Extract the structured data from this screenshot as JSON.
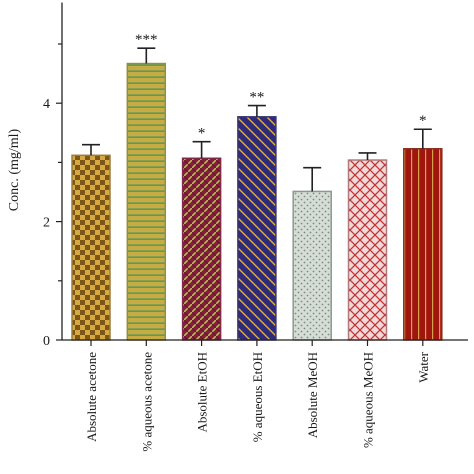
{
  "chart_data": {
    "type": "bar",
    "ylabel": "Conc. (mg/ml)",
    "xlabel": "",
    "ylim": [
      0,
      5.7
    ],
    "yticks": [
      0,
      2,
      4
    ],
    "grid": false,
    "categories": [
      "Absolute acetone",
      "% aqueous acetone",
      "Absolute EtOH",
      "% aqueous EtOH",
      "Absolute MeOH",
      "% aqueous MeOH",
      "Water"
    ],
    "values": [
      3.12,
      4.67,
      3.07,
      3.77,
      2.51,
      3.04,
      3.23
    ],
    "errors": [
      0.18,
      0.26,
      0.28,
      0.19,
      0.4,
      0.12,
      0.33
    ],
    "significance": [
      "",
      "***",
      "*",
      "**",
      "",
      "",
      "*"
    ],
    "bar_styles": [
      {
        "pattern": "checker",
        "fill": "#d9a941",
        "accent": "#7a5718",
        "edge": "#9c7d3f"
      },
      {
        "pattern": "hstripe",
        "fill": "#c7ab45",
        "accent": "#3f9a5a",
        "edge": "#9a8a4a"
      },
      {
        "pattern": "bricks",
        "fill": "#8a1a40",
        "accent": "#b0c04a",
        "edge": "#7e2a48"
      },
      {
        "pattern": "diagonal",
        "fill": "#2e2a78",
        "accent": "#e4b13e",
        "edge": "#3a3470"
      },
      {
        "pattern": "dots",
        "fill": "#d6ddd6",
        "accent": "#7c8c7c",
        "edge": "#8a9a8a"
      },
      {
        "pattern": "crosshatch",
        "fill": "#f2d9d9",
        "accent": "#c03535",
        "edge": "#b07a7a"
      },
      {
        "pattern": "vstripe",
        "fill": "#a0160f",
        "accent": "#d8a04a",
        "edge": "#8a2a20"
      }
    ]
  }
}
